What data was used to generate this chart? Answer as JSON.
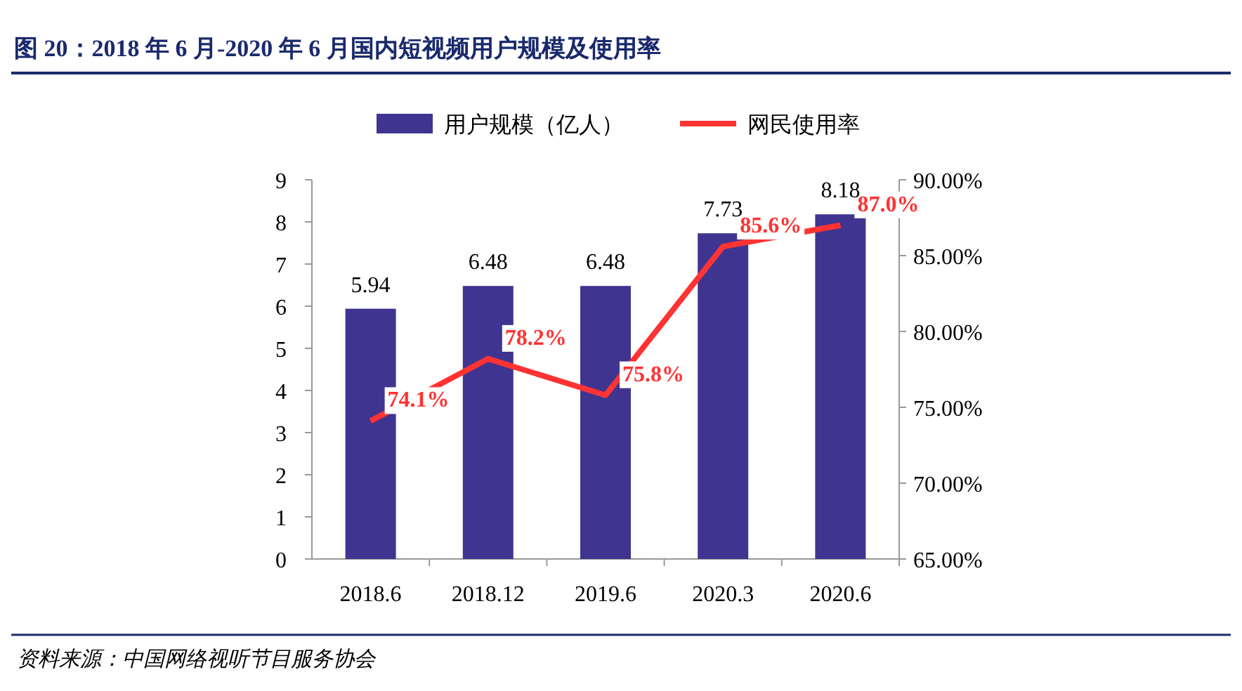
{
  "chart_data": {
    "type": "bar",
    "title": "图 20：2018 年 6 月-2020 年 6 月国内短视频用户规模及使用率",
    "annotations": [
      "资料来源：中国网络视听节目服务协会"
    ],
    "categories": [
      "2018.6",
      "2018.12",
      "2019.6",
      "2020.3",
      "2020.6"
    ],
    "series": [
      {
        "name": "用户规模（亿人）",
        "color": "#3f3590",
        "values": [
          5.94,
          6.48,
          6.48,
          7.73,
          8.18
        ],
        "value_labels": [
          "5.94",
          "6.48",
          "6.48",
          "7.73",
          "8.18"
        ]
      },
      {
        "name": "网民使用率",
        "type": "line",
        "axis": "y2",
        "color": "#ff3333",
        "values": [
          74.1,
          78.2,
          75.8,
          85.6,
          87.0
        ],
        "value_labels": [
          "74.1%",
          "78.2%",
          "75.8%",
          "85.6%",
          "87.0%"
        ]
      }
    ],
    "ylim": [
      0,
      9
    ],
    "yticks": [
      0,
      1,
      2,
      3,
      4,
      5,
      6,
      7,
      8,
      9
    ],
    "y2lim": [
      65,
      90
    ],
    "y2ticks": [
      {
        "value": 65,
        "label": "65.00%"
      },
      {
        "value": 70,
        "label": "70.00%"
      },
      {
        "value": 75,
        "label": "75.00%"
      },
      {
        "value": 80,
        "label": "80.00%"
      },
      {
        "value": 85,
        "label": "85.00%"
      },
      {
        "value": 90,
        "label": "90.00%"
      }
    ],
    "legend": "top"
  }
}
